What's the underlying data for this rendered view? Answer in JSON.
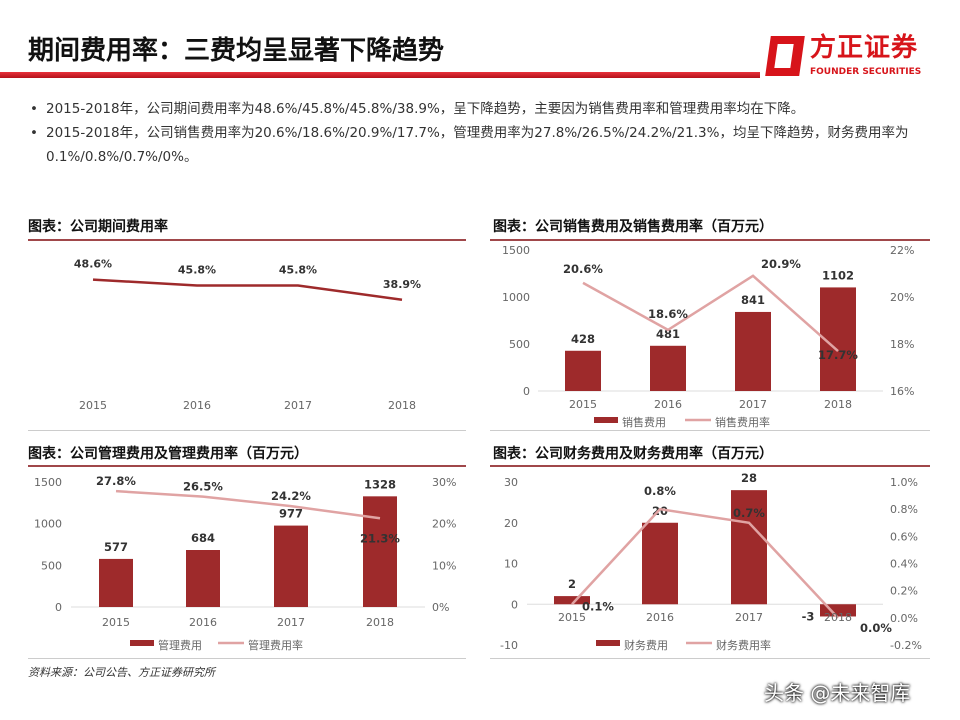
{
  "header": {
    "title": "期间费用率：三费均呈显著下降趋势",
    "logo_cn": "方正证券",
    "logo_en": "FOUNDER SECURITIES"
  },
  "bullets": [
    "2015-2018年，公司期间费用率为48.6%/45.8%/45.8%/38.9%，呈下降趋势，主要因为销售费用率和管理费用率均在下降。",
    "2015-2018年，公司销售费用率为20.6%/18.6%/20.9%/17.7%，管理费用率为27.8%/26.5%/24.2%/21.3%，均呈下降趋势，财务费用率为0.1%/0.8%/0.7%/0%。"
  ],
  "footer": {
    "source": "资料来源：公司公告、方正证券研究所",
    "watermark": "头条 @未来智库"
  },
  "colors": {
    "bar": "#9e2a2b",
    "line": "#e0a3a3",
    "line1": "#9e2a2b",
    "accent": "#d7141a"
  },
  "chart_data": [
    {
      "type": "line",
      "title": "图表：公司期间费用率",
      "categories": [
        "2015",
        "2016",
        "2017",
        "2018"
      ],
      "series": [
        {
          "values": [
            48.6,
            45.8,
            45.8,
            38.9
          ],
          "labels": [
            "48.6%",
            "45.8%",
            "45.8%",
            "38.9%"
          ]
        }
      ]
    },
    {
      "type": "bar+line",
      "title": "图表：公司销售费用及销售费用率（百万元）",
      "categories": [
        "2015",
        "2016",
        "2017",
        "2018"
      ],
      "ylim": [
        0,
        1500
      ],
      "yticks": [
        "0",
        "500",
        "1000",
        "1500"
      ],
      "y2lim": [
        16,
        22
      ],
      "y2ticks": [
        "16%",
        "18%",
        "20%",
        "22%"
      ],
      "series": [
        {
          "name": "销售费用",
          "type": "bar",
          "values": [
            428,
            481,
            841,
            1102
          ],
          "labels": [
            "428",
            "481",
            "841",
            "1102"
          ]
        },
        {
          "name": "销售费用率",
          "type": "line",
          "values": [
            20.6,
            18.6,
            20.9,
            17.7
          ],
          "labels": [
            "20.6%",
            "18.6%",
            "20.9%",
            "17.7%"
          ]
        }
      ]
    },
    {
      "type": "bar+line",
      "title": "图表：公司管理费用及管理费用率（百万元）",
      "categories": [
        "2015",
        "2016",
        "2017",
        "2018"
      ],
      "ylim": [
        0,
        1500
      ],
      "yticks": [
        "0",
        "500",
        "1000",
        "1500"
      ],
      "y2lim": [
        0,
        30
      ],
      "y2ticks": [
        "0%",
        "10%",
        "20%",
        "30%"
      ],
      "series": [
        {
          "name": "管理费用",
          "type": "bar",
          "values": [
            577,
            684,
            977,
            1328
          ],
          "labels": [
            "577",
            "684",
            "977",
            "1328"
          ]
        },
        {
          "name": "管理费用率",
          "type": "line",
          "values": [
            27.8,
            26.5,
            24.2,
            21.3
          ],
          "labels": [
            "27.8%",
            "26.5%",
            "24.2%",
            "21.3%"
          ]
        }
      ]
    },
    {
      "type": "bar+line",
      "title": "图表：公司财务费用及财务费用率（百万元）",
      "categories": [
        "2015",
        "2016",
        "2017",
        "2018"
      ],
      "ylim": [
        -10,
        30
      ],
      "yticks": [
        "-10",
        "0",
        "10",
        "20",
        "30"
      ],
      "y2lim": [
        -0.2,
        1.0
      ],
      "y2ticks": [
        "-0.2%",
        "0.0%",
        "0.2%",
        "0.4%",
        "0.6%",
        "0.8%",
        "1.0%"
      ],
      "series": [
        {
          "name": "财务费用",
          "type": "bar",
          "values": [
            2,
            20,
            28,
            -3
          ],
          "labels": [
            "2",
            "20",
            "28",
            "-3"
          ]
        },
        {
          "name": "财务费用率",
          "type": "line",
          "values": [
            0.1,
            0.8,
            0.7,
            0.0
          ],
          "labels": [
            "0.1%",
            "0.8%",
            "0.7%",
            "0.0%"
          ]
        }
      ]
    }
  ]
}
